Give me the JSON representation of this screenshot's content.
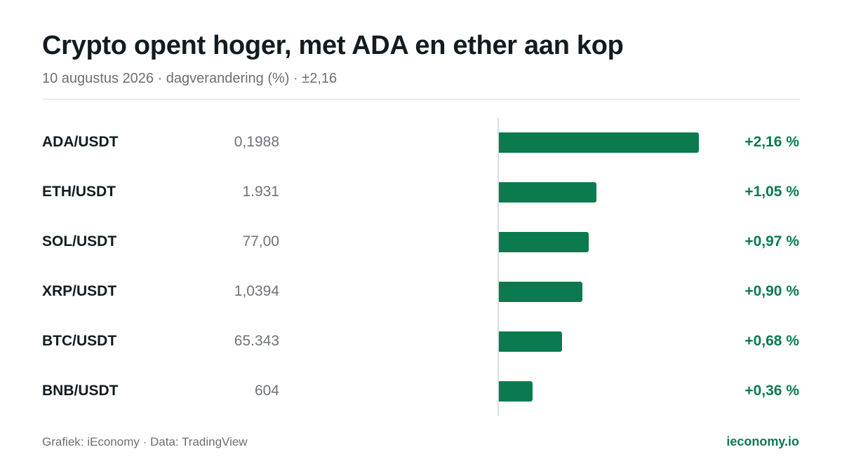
{
  "header": {
    "title": "Crypto opent hoger, met ADA en ether aan kop",
    "subtitle": "10 augustus 2026 · dagverandering (%) · ±2,16"
  },
  "chart_data": {
    "type": "bar",
    "orientation": "horizontal",
    "title": "Crypto opent hoger, met ADA en ether aan kop",
    "subtitle": "10 augustus 2026 · dagverandering (%) · ±2,16",
    "xlim": [
      0,
      2.16
    ],
    "grid": false,
    "categories": [
      "ADA/USDT",
      "ETH/USDT",
      "SOL/USDT",
      "XRP/USDT",
      "BTC/USDT",
      "BNB/USDT"
    ],
    "prices": [
      "0,1988",
      "1.931",
      "77,00",
      "1,0394",
      "65.343",
      "604"
    ],
    "values": [
      2.16,
      1.05,
      0.97,
      0.9,
      0.68,
      0.36
    ],
    "value_labels": [
      "+2,16 %",
      "+1,05 %",
      "+0,97 %",
      "+0,90 %",
      "+0,68 %",
      "+0,36 %"
    ],
    "bar_color": "#0b7a4e"
  },
  "footer": {
    "source": "Grafiek: iEconomy · Data: TradingView",
    "brand": "ieconomy.io"
  }
}
